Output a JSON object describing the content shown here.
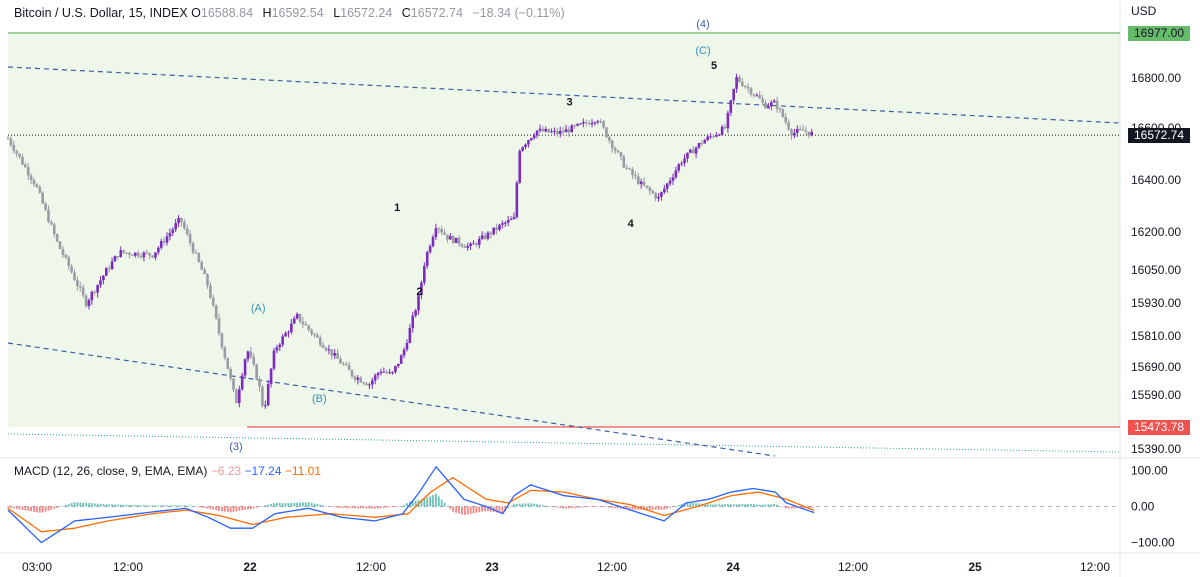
{
  "header": {
    "symbol": "Bitcoin / U.S. Dollar, 15, INDEX",
    "open_label": "O",
    "open": "16588.84",
    "high_label": "H",
    "high": "16592.54",
    "low_label": "L",
    "low": "16572.24",
    "close_label": "C",
    "close": "16572.74",
    "change": "−18.34 (−0.11%)"
  },
  "currency": "USD",
  "price_labels": {
    "top_line": "16977.00",
    "current": "16572.74",
    "bottom_line": "15473.78"
  },
  "colors": {
    "up": "#7b2bbd",
    "down": "#9a9ba3",
    "bg_zone": "#eef7ea",
    "top_line": "#66bb6a",
    "bottom_line": "#ef5350",
    "trend_line": "#3c5ea6",
    "macd_line": "#2962ff",
    "signal_line": "#ff6d00",
    "hist_pos": "#26a69a",
    "hist_neg": "#ef5350"
  },
  "chart_data": [
    {
      "type": "candlestick",
      "title": "Bitcoin / U.S. Dollar, 15, INDEX",
      "ylabel": "USD",
      "ylim": [
        15330,
        17040
      ],
      "y_ticks": [
        "16800.00",
        "16600.00",
        "16400.00",
        "16200.00",
        "16050.00",
        "15930.00",
        "15810.00",
        "15690.00",
        "15590.00",
        "15390.00"
      ],
      "x_ticks": [
        "03:00",
        "12:00",
        "22",
        "12:00",
        "23",
        "12:00",
        "24",
        "12:00",
        "25",
        "12:00"
      ],
      "price_path": {
        "t": [
          0.0,
          2.5,
          4.5,
          7.0,
          10.0,
          13.0,
          15.5,
          18.0,
          20.5,
          21.5,
          22.5,
          23.0,
          24.0,
          26.0,
          28.5,
          31.0,
          32.5,
          33.5,
          34.5,
          35.5,
          37.0,
          37.5,
          38.5,
          39.5,
          41.5,
          43.5,
          44.5,
          45.5,
          46.0,
          47.5,
          49.5,
          51.5,
          53.0,
          54.0,
          55.5,
          57.0,
          58.5,
          60.5,
          62.5,
          64.5,
          65.5,
          67.5,
          68.0,
          69.0,
          70.5,
          71.5,
          72.5
        ],
        "price": [
          16560,
          16380,
          16150,
          15930,
          16120,
          16110,
          16250,
          15990,
          15560,
          15760,
          15640,
          15530,
          15760,
          15880,
          15770,
          15660,
          15630,
          15680,
          15660,
          15740,
          15960,
          16090,
          16230,
          16180,
          16140,
          16200,
          16230,
          16250,
          16520,
          16590,
          16580,
          16610,
          16640,
          16560,
          16450,
          16380,
          16330,
          16470,
          16550,
          16600,
          16800,
          16720,
          16690,
          16700,
          16580,
          16590,
          16575
        ]
      }
    },
    {
      "type": "line",
      "title": "MACD (12, 26, close, 9, EMA, EMA)",
      "ylim": [
        -115,
        115
      ],
      "y_ticks": [
        "100.00",
        "0.00",
        "−100.00"
      ],
      "values": {
        "histogram": "−6.23",
        "macd": "−17.24",
        "signal": "−11.01"
      },
      "macd_path": {
        "t": [
          0,
          2,
          3,
          6,
          9,
          13,
          16,
          18,
          20,
          22,
          24,
          27,
          30,
          33,
          35.5,
          37,
          38.5,
          41,
          43,
          44.5,
          45.5,
          47,
          50,
          53,
          55,
          57,
          59,
          61,
          63,
          65,
          67,
          69,
          70,
          72.5
        ],
        "value": [
          -10,
          -70,
          -100,
          -40,
          -30,
          -15,
          -5,
          -30,
          -60,
          -60,
          -20,
          -5,
          -30,
          -40,
          -20,
          40,
          110,
          20,
          0,
          -20,
          30,
          60,
          30,
          20,
          0,
          -20,
          -40,
          10,
          20,
          40,
          50,
          40,
          10,
          -17
        ]
      },
      "signal_path": {
        "t": [
          0,
          3,
          6,
          9,
          13,
          16,
          19,
          22,
          25,
          29,
          33,
          36,
          38,
          40,
          43,
          45,
          47,
          50,
          53,
          56,
          59,
          62,
          65,
          67.5,
          70,
          72.5
        ],
        "value": [
          -5,
          -70,
          -60,
          -40,
          -20,
          -10,
          -25,
          -50,
          -30,
          -20,
          -30,
          -20,
          40,
          80,
          20,
          10,
          45,
          40,
          20,
          5,
          -25,
          0,
          30,
          40,
          20,
          -11
        ]
      }
    }
  ],
  "wave_labels": [
    {
      "text": "(4)",
      "t": 62.5,
      "price": 17000
    },
    {
      "text": "(C)",
      "t": 62.5,
      "price": 16895
    },
    {
      "text": "5",
      "t": 63.5,
      "price": 16835
    },
    {
      "text": "3",
      "t": 50.5,
      "price": 16690
    },
    {
      "text": "1",
      "t": 35.0,
      "price": 16280
    },
    {
      "text": "2",
      "t": 37.0,
      "price": 15960
    },
    {
      "text": "4",
      "t": 56.0,
      "price": 16220
    },
    {
      "text": "(A)",
      "t": 22.5,
      "price": 15900
    },
    {
      "text": "(B)",
      "t": 28.0,
      "price": 15565
    },
    {
      "text": "(3)",
      "t": 20.5,
      "price": 15380
    }
  ]
}
